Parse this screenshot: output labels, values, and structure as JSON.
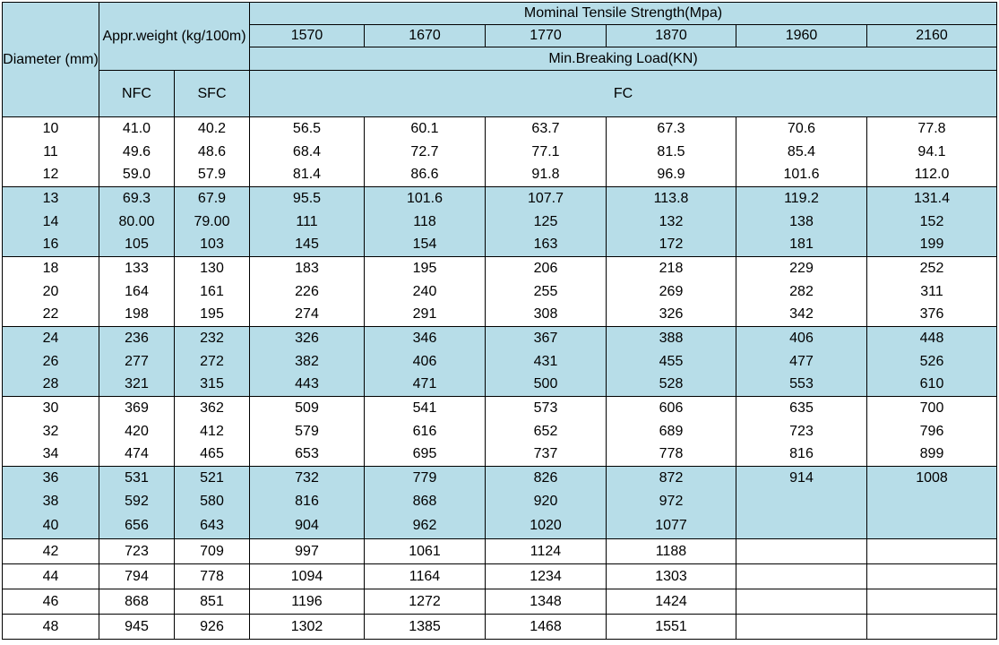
{
  "header": {
    "diameter": "Diameter (mm)",
    "weight": "Appr.weight (kg/100m)",
    "nominal": "Mominal Tensile Strength(Mpa)",
    "grades": [
      "1570",
      "1670",
      "1770",
      "1870",
      "1960",
      "2160"
    ],
    "min_breaking": "Min.Breaking Load(KN)",
    "nfc": "NFC",
    "sfc": "SFC",
    "fc": "FC"
  },
  "rows": [
    {
      "d": "10",
      "nfc": "41.0",
      "sfc": "40.2",
      "v": [
        "56.5",
        "60.1",
        "63.7",
        "67.3",
        "70.6",
        "77.8"
      ]
    },
    {
      "d": "11",
      "nfc": "49.6",
      "sfc": "48.6",
      "v": [
        "68.4",
        "72.7",
        "77.1",
        "81.5",
        "85.4",
        "94.1"
      ]
    },
    {
      "d": "12",
      "nfc": "59.0",
      "sfc": "57.9",
      "v": [
        "81.4",
        "86.6",
        "91.8",
        "96.9",
        "101.6",
        "112.0"
      ]
    },
    {
      "d": "13",
      "nfc": "69.3",
      "sfc": "67.9",
      "v": [
        "95.5",
        "101.6",
        "107.7",
        "113.8",
        "119.2",
        "131.4"
      ]
    },
    {
      "d": "14",
      "nfc": "80.00",
      "sfc": "79.00",
      "v": [
        "111",
        "118",
        "125",
        "132",
        "138",
        "152"
      ]
    },
    {
      "d": "16",
      "nfc": "105",
      "sfc": "103",
      "v": [
        "145",
        "154",
        "163",
        "172",
        "181",
        "199"
      ]
    },
    {
      "d": "18",
      "nfc": "133",
      "sfc": "130",
      "v": [
        "183",
        "195",
        "206",
        "218",
        "229",
        "252"
      ]
    },
    {
      "d": "20",
      "nfc": "164",
      "sfc": "161",
      "v": [
        "226",
        "240",
        "255",
        "269",
        "282",
        "311"
      ]
    },
    {
      "d": "22",
      "nfc": "198",
      "sfc": "195",
      "v": [
        "274",
        "291",
        "308",
        "326",
        "342",
        "376"
      ]
    },
    {
      "d": "24",
      "nfc": "236",
      "sfc": "232",
      "v": [
        "326",
        "346",
        "367",
        "388",
        "406",
        "448"
      ]
    },
    {
      "d": "26",
      "nfc": "277",
      "sfc": "272",
      "v": [
        "382",
        "406",
        "431",
        "455",
        "477",
        "526"
      ]
    },
    {
      "d": "28",
      "nfc": "321",
      "sfc": "315",
      "v": [
        "443",
        "471",
        "500",
        "528",
        "553",
        "610"
      ]
    },
    {
      "d": "30",
      "nfc": "369",
      "sfc": "362",
      "v": [
        "509",
        "541",
        "573",
        "606",
        "635",
        "700"
      ]
    },
    {
      "d": "32",
      "nfc": "420",
      "sfc": "412",
      "v": [
        "579",
        "616",
        "652",
        "689",
        "723",
        "796"
      ]
    },
    {
      "d": "34",
      "nfc": "474",
      "sfc": "465",
      "v": [
        "653",
        "695",
        "737",
        "778",
        "816",
        "899"
      ]
    },
    {
      "d": "36",
      "nfc": "531",
      "sfc": "521",
      "v": [
        "732",
        "779",
        "826",
        "872",
        "914",
        "1008"
      ]
    },
    {
      "d": "38",
      "nfc": "592",
      "sfc": "580",
      "v": [
        "816",
        "868",
        "920",
        "972",
        "",
        ""
      ]
    },
    {
      "d": "40",
      "nfc": "656",
      "sfc": "643",
      "v": [
        "904",
        "962",
        "1020",
        "1077",
        "",
        ""
      ]
    },
    {
      "d": "42",
      "nfc": "723",
      "sfc": "709",
      "v": [
        "997",
        "1061",
        "1124",
        "1188",
        "",
        ""
      ]
    },
    {
      "d": "44",
      "nfc": "794",
      "sfc": "778",
      "v": [
        "1094",
        "1164",
        "1234",
        "1303",
        "",
        ""
      ]
    },
    {
      "d": "46",
      "nfc": "868",
      "sfc": "851",
      "v": [
        "1196",
        "1272",
        "1348",
        "1424",
        "",
        ""
      ]
    },
    {
      "d": "48",
      "nfc": "945",
      "sfc": "926",
      "v": [
        "1302",
        "1385",
        "1468",
        "1551",
        "",
        ""
      ]
    }
  ],
  "bands": [
    3,
    4,
    5,
    9,
    10,
    11,
    15,
    16,
    17
  ],
  "colors": {
    "band": "#b7dde8",
    "plain": "#ffffff"
  }
}
